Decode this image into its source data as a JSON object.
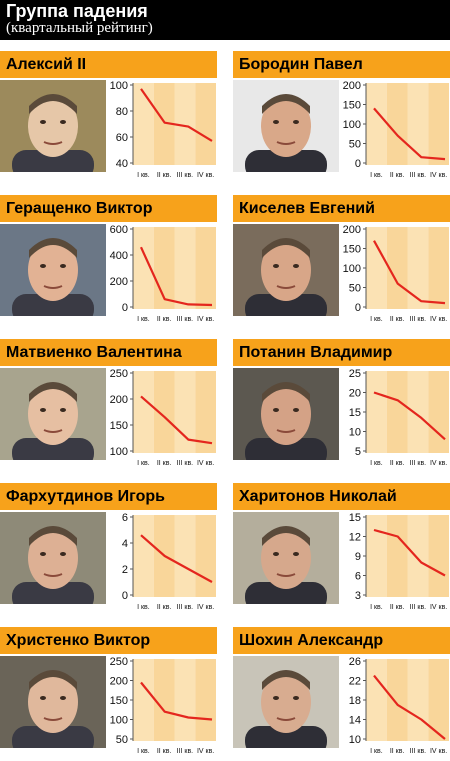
{
  "header": {
    "title": "Группа падения",
    "subtitle": "(квартальный рейтинг)"
  },
  "quarter_labels": [
    "I кв.",
    "II кв.",
    "III кв.",
    "IV кв."
  ],
  "colors": {
    "name_bar": "#f7a21b",
    "chart_bg": "#fbe2b4",
    "chart_bg_alt": "#f9d69a",
    "line": "#e4261e",
    "header_bg": "#000000"
  },
  "chart_data": [
    {
      "type": "line",
      "title": "Алексий II",
      "categories": [
        "I кв.",
        "II кв.",
        "III кв.",
        "IV кв."
      ],
      "values": [
        97,
        71,
        68,
        57
      ],
      "ylim": [
        40,
        100
      ],
      "yticks": [
        40,
        60,
        80,
        100
      ]
    },
    {
      "type": "line",
      "title": "Бородин Павел",
      "categories": [
        "I кв.",
        "II кв.",
        "III кв.",
        "IV кв."
      ],
      "values": [
        140,
        70,
        15,
        10
      ],
      "ylim": [
        0,
        200
      ],
      "yticks": [
        0,
        50,
        100,
        150,
        200
      ]
    },
    {
      "type": "line",
      "title": "Геращенко Виктор",
      "categories": [
        "I кв.",
        "II кв.",
        "III кв.",
        "IV кв."
      ],
      "values": [
        460,
        60,
        20,
        15
      ],
      "ylim": [
        0,
        600
      ],
      "yticks": [
        0,
        200,
        400,
        600
      ]
    },
    {
      "type": "line",
      "title": "Киселев Евгений",
      "categories": [
        "I кв.",
        "II кв.",
        "III кв.",
        "IV кв."
      ],
      "values": [
        170,
        60,
        15,
        10
      ],
      "ylim": [
        0,
        200
      ],
      "yticks": [
        0,
        50,
        100,
        150,
        200
      ]
    },
    {
      "type": "line",
      "title": "Матвиенко Валентина",
      "categories": [
        "I кв.",
        "II кв.",
        "III кв.",
        "IV кв."
      ],
      "values": [
        205,
        165,
        122,
        115
      ],
      "ylim": [
        100,
        250
      ],
      "yticks": [
        100,
        150,
        200,
        250
      ]
    },
    {
      "type": "line",
      "title": "Потанин Владимир",
      "categories": [
        "I кв.",
        "II кв.",
        "III кв.",
        "IV кв."
      ],
      "values": [
        20,
        18,
        13.5,
        8
      ],
      "ylim": [
        5,
        25
      ],
      "yticks": [
        5,
        10,
        15,
        20,
        25
      ]
    },
    {
      "type": "line",
      "title": "Фархутдинов Игорь",
      "categories": [
        "I кв.",
        "II кв.",
        "III кв.",
        "IV кв."
      ],
      "values": [
        4.6,
        3,
        2,
        1
      ],
      "ylim": [
        0,
        6
      ],
      "yticks": [
        0,
        2,
        4,
        6
      ]
    },
    {
      "type": "line",
      "title": "Харитонов Николай",
      "categories": [
        "I кв.",
        "II кв.",
        "III кв.",
        "IV кв."
      ],
      "values": [
        13,
        12,
        8,
        6
      ],
      "ylim": [
        3,
        15
      ],
      "yticks": [
        3,
        6,
        9,
        12,
        15
      ]
    },
    {
      "type": "line",
      "title": "Христенко Виктор",
      "categories": [
        "I кв.",
        "II кв.",
        "III кв.",
        "IV кв."
      ],
      "values": [
        195,
        120,
        105,
        100
      ],
      "ylim": [
        50,
        250
      ],
      "yticks": [
        50,
        100,
        150,
        200,
        250
      ]
    },
    {
      "type": "line",
      "title": "Шохин Александр",
      "categories": [
        "I кв.",
        "II кв.",
        "III кв.",
        "IV кв."
      ],
      "values": [
        23,
        17,
        14,
        10
      ],
      "ylim": [
        10,
        26
      ],
      "yticks": [
        10,
        14,
        18,
        22,
        26
      ]
    }
  ]
}
